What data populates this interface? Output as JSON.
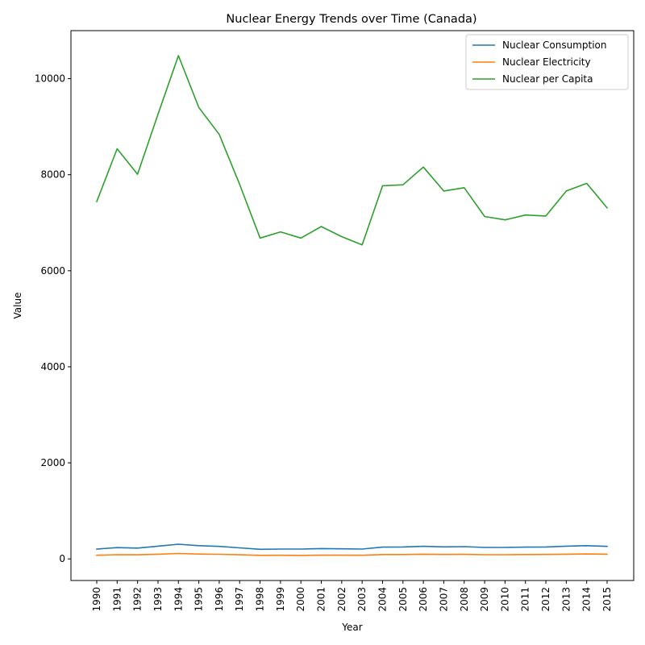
{
  "chart_data": {
    "type": "line",
    "title": "Nuclear Energy Trends over Time (Canada)",
    "xlabel": "Year",
    "ylabel": "Value",
    "ylim": [
      -450,
      11000
    ],
    "yticks": [
      0,
      2000,
      4000,
      6000,
      8000,
      10000
    ],
    "grid": false,
    "legend_position": "top-right",
    "categories": [
      "1990",
      "1991",
      "1992",
      "1993",
      "1994",
      "1995",
      "1996",
      "1997",
      "1998",
      "1999",
      "2000",
      "2001",
      "2002",
      "2003",
      "2004",
      "2005",
      "2006",
      "2007",
      "2008",
      "2009",
      "2010",
      "2011",
      "2012",
      "2013",
      "2014",
      "2015"
    ],
    "series": [
      {
        "name": "Nuclear Consumption",
        "color": "#1f77b4",
        "values": [
          205,
          235,
          225,
          265,
          305,
          275,
          260,
          230,
          200,
          205,
          205,
          215,
          210,
          205,
          245,
          248,
          262,
          250,
          255,
          238,
          238,
          245,
          248,
          265,
          275,
          260
        ]
      },
      {
        "name": "Nuclear Electricity",
        "color": "#ff7f0e",
        "values": [
          75,
          88,
          85,
          97,
          112,
          100,
          95,
          85,
          74,
          75,
          72,
          78,
          77,
          75,
          90,
          91,
          97,
          92,
          94,
          88,
          88,
          90,
          92,
          98,
          103,
          97
        ]
      },
      {
        "name": "Nuclear per Capita",
        "color": "#2ca02c",
        "values": [
          7440,
          8540,
          8010,
          9260,
          10480,
          9400,
          8840,
          7800,
          6680,
          6810,
          6680,
          6920,
          6710,
          6540,
          7770,
          7790,
          8160,
          7660,
          7730,
          7130,
          7060,
          7160,
          7140,
          7660,
          7820,
          7310
        ]
      }
    ]
  }
}
